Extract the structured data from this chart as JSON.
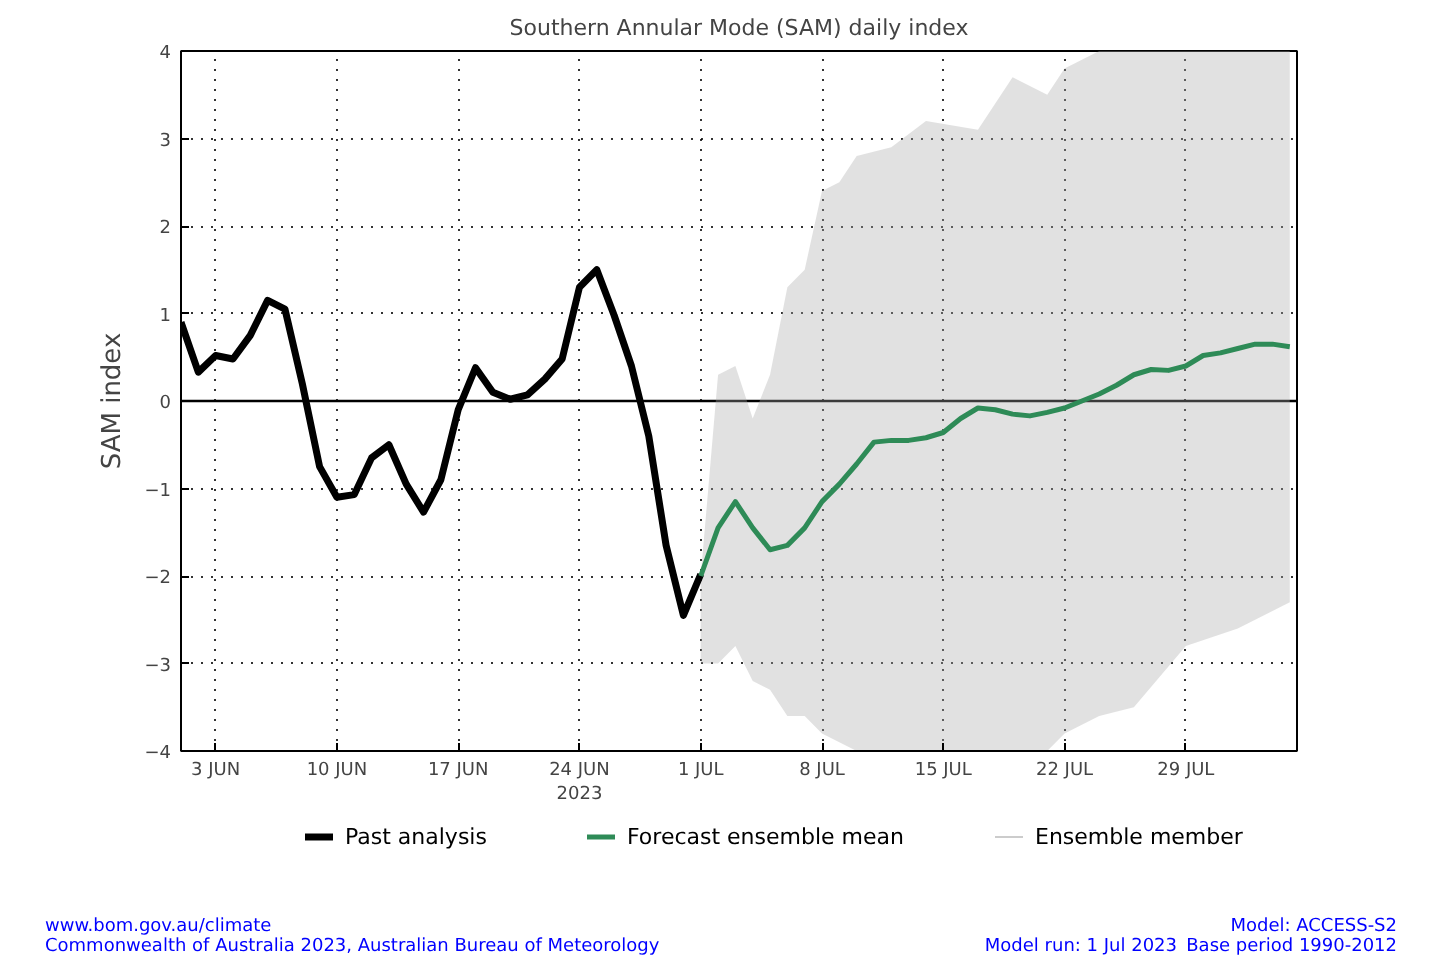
{
  "chart_data": {
    "type": "line",
    "title": "Southern Annular Mode (SAM) daily index",
    "ylabel": "SAM index",
    "xlim": [
      "2023-06-01",
      "2023-08-04T10:00"
    ],
    "ylim": [
      -4,
      4
    ],
    "xticks": [
      {
        "value": "2023-06-03",
        "label": "3 JUN"
      },
      {
        "value": "2023-06-10",
        "label": "10 JUN"
      },
      {
        "value": "2023-06-17",
        "label": "17 JUN"
      },
      {
        "value": "2023-06-24",
        "label": "24 JUN\n2023"
      },
      {
        "value": "2023-07-01",
        "label": "1 JUL"
      },
      {
        "value": "2023-07-08",
        "label": "8 JUL"
      },
      {
        "value": "2023-07-15",
        "label": "15 JUL"
      },
      {
        "value": "2023-07-22",
        "label": "22 JUL"
      },
      {
        "value": "2023-07-29",
        "label": "29 JUL"
      }
    ],
    "yticks": [
      {
        "value": -4,
        "label": "−4"
      },
      {
        "value": -3,
        "label": "−3"
      },
      {
        "value": -2,
        "label": "−2"
      },
      {
        "value": -1,
        "label": "−1"
      },
      0,
      1,
      2,
      3,
      4
    ],
    "grid": true,
    "legend": "bottom",
    "line_style": "solid",
    "marker": "none",
    "ref_lines": [
      {
        "axis": "y",
        "value": 0,
        "color": "#000000",
        "line_style": "solid"
      }
    ],
    "series": [
      {
        "name": "Ensemble member",
        "color": "#aaaaaa",
        "x": [
          "2023-07-01",
          "2023-07-02",
          "2023-07-03",
          "2023-07-04",
          "2023-07-05",
          "2023-07-06",
          "2023-07-07",
          "2023-07-08",
          "2023-07-09",
          "2023-07-10",
          "2023-07-12",
          "2023-07-14",
          "2023-07-17",
          "2023-07-19",
          "2023-07-21",
          "2023-07-22",
          "2023-07-24",
          "2023-07-26",
          "2023-07-29",
          "2023-08-01",
          "2023-08-04"
        ],
        "values": [
          null,
          null,
          null,
          null,
          null,
          null,
          null,
          null,
          null,
          null,
          null,
          null,
          null,
          null,
          null,
          null,
          null,
          null,
          null,
          null,
          null
        ],
        "lower": [
          -3.0,
          -3.0,
          -2.8,
          -3.2,
          -3.3,
          -3.6,
          -3.6,
          -3.8,
          -3.9,
          -4,
          -4,
          -4,
          -4,
          -4,
          -4,
          -3.8,
          -3.6,
          -3.5,
          -2.8,
          -2.6,
          -2.3
        ],
        "upper": [
          -2.0,
          0.3,
          0.4,
          -0.2,
          0.3,
          1.3,
          1.5,
          2.4,
          2.5,
          2.8,
          2.9,
          3.2,
          3.1,
          3.7,
          3.5,
          3.8,
          4,
          4,
          4,
          4,
          4
        ]
      },
      {
        "name": "Past analysis",
        "color": "#000000",
        "x": [
          "2023-06-01",
          "2023-06-02",
          "2023-06-03",
          "2023-06-04",
          "2023-06-05",
          "2023-06-06",
          "2023-06-07",
          "2023-06-08",
          "2023-06-09",
          "2023-06-10",
          "2023-06-11",
          "2023-06-12",
          "2023-06-13",
          "2023-06-14",
          "2023-06-15",
          "2023-06-16",
          "2023-06-17",
          "2023-06-18",
          "2023-06-19",
          "2023-06-20",
          "2023-06-21",
          "2023-06-22",
          "2023-06-23",
          "2023-06-24",
          "2023-06-25",
          "2023-06-26",
          "2023-06-27",
          "2023-06-28",
          "2023-06-29",
          "2023-06-30",
          "2023-07-01"
        ],
        "values": [
          0.9,
          0.33,
          0.52,
          0.48,
          0.75,
          1.15,
          1.05,
          0.2,
          -0.75,
          -1.1,
          -1.07,
          -0.65,
          -0.5,
          -0.95,
          -1.27,
          -0.9,
          -0.1,
          0.38,
          0.1,
          0.02,
          0.07,
          0.25,
          0.48,
          1.3,
          1.5,
          0.98,
          0.4,
          -0.4,
          -1.65,
          -2.45,
          -1.98
        ]
      },
      {
        "name": "Forecast ensemble mean",
        "color": "#2e8b57",
        "x": [
          "2023-07-01",
          "2023-07-02",
          "2023-07-03",
          "2023-07-04",
          "2023-07-05",
          "2023-07-06",
          "2023-07-07",
          "2023-07-08",
          "2023-07-09",
          "2023-07-10",
          "2023-07-11",
          "2023-07-12",
          "2023-07-13",
          "2023-07-14",
          "2023-07-15",
          "2023-07-16",
          "2023-07-17",
          "2023-07-18",
          "2023-07-19",
          "2023-07-20",
          "2023-07-21",
          "2023-07-22",
          "2023-07-23",
          "2023-07-24",
          "2023-07-25",
          "2023-07-26",
          "2023-07-27",
          "2023-07-28",
          "2023-07-29",
          "2023-07-30",
          "2023-07-31",
          "2023-08-01",
          "2023-08-02",
          "2023-08-03",
          "2023-08-04"
        ],
        "values": [
          -2.0,
          -1.45,
          -1.15,
          -1.45,
          -1.7,
          -1.65,
          -1.45,
          -1.15,
          -0.95,
          -0.72,
          -0.47,
          -0.45,
          -0.45,
          -0.42,
          -0.36,
          -0.2,
          -0.08,
          -0.1,
          -0.15,
          -0.17,
          -0.13,
          -0.08,
          0.0,
          0.08,
          0.18,
          0.3,
          0.36,
          0.35,
          0.4,
          0.52,
          0.55,
          0.6,
          0.65,
          0.65,
          0.62
        ]
      }
    ],
    "annotations": [
      "www.bom.gov.au/climate",
      "Commonwealth of Australia 2023, Australian Bureau of Meteorology",
      "Model run: 1 Jul 2023",
      "Model: ACCESS-S2",
      "Base period 1990-2012"
    ]
  }
}
